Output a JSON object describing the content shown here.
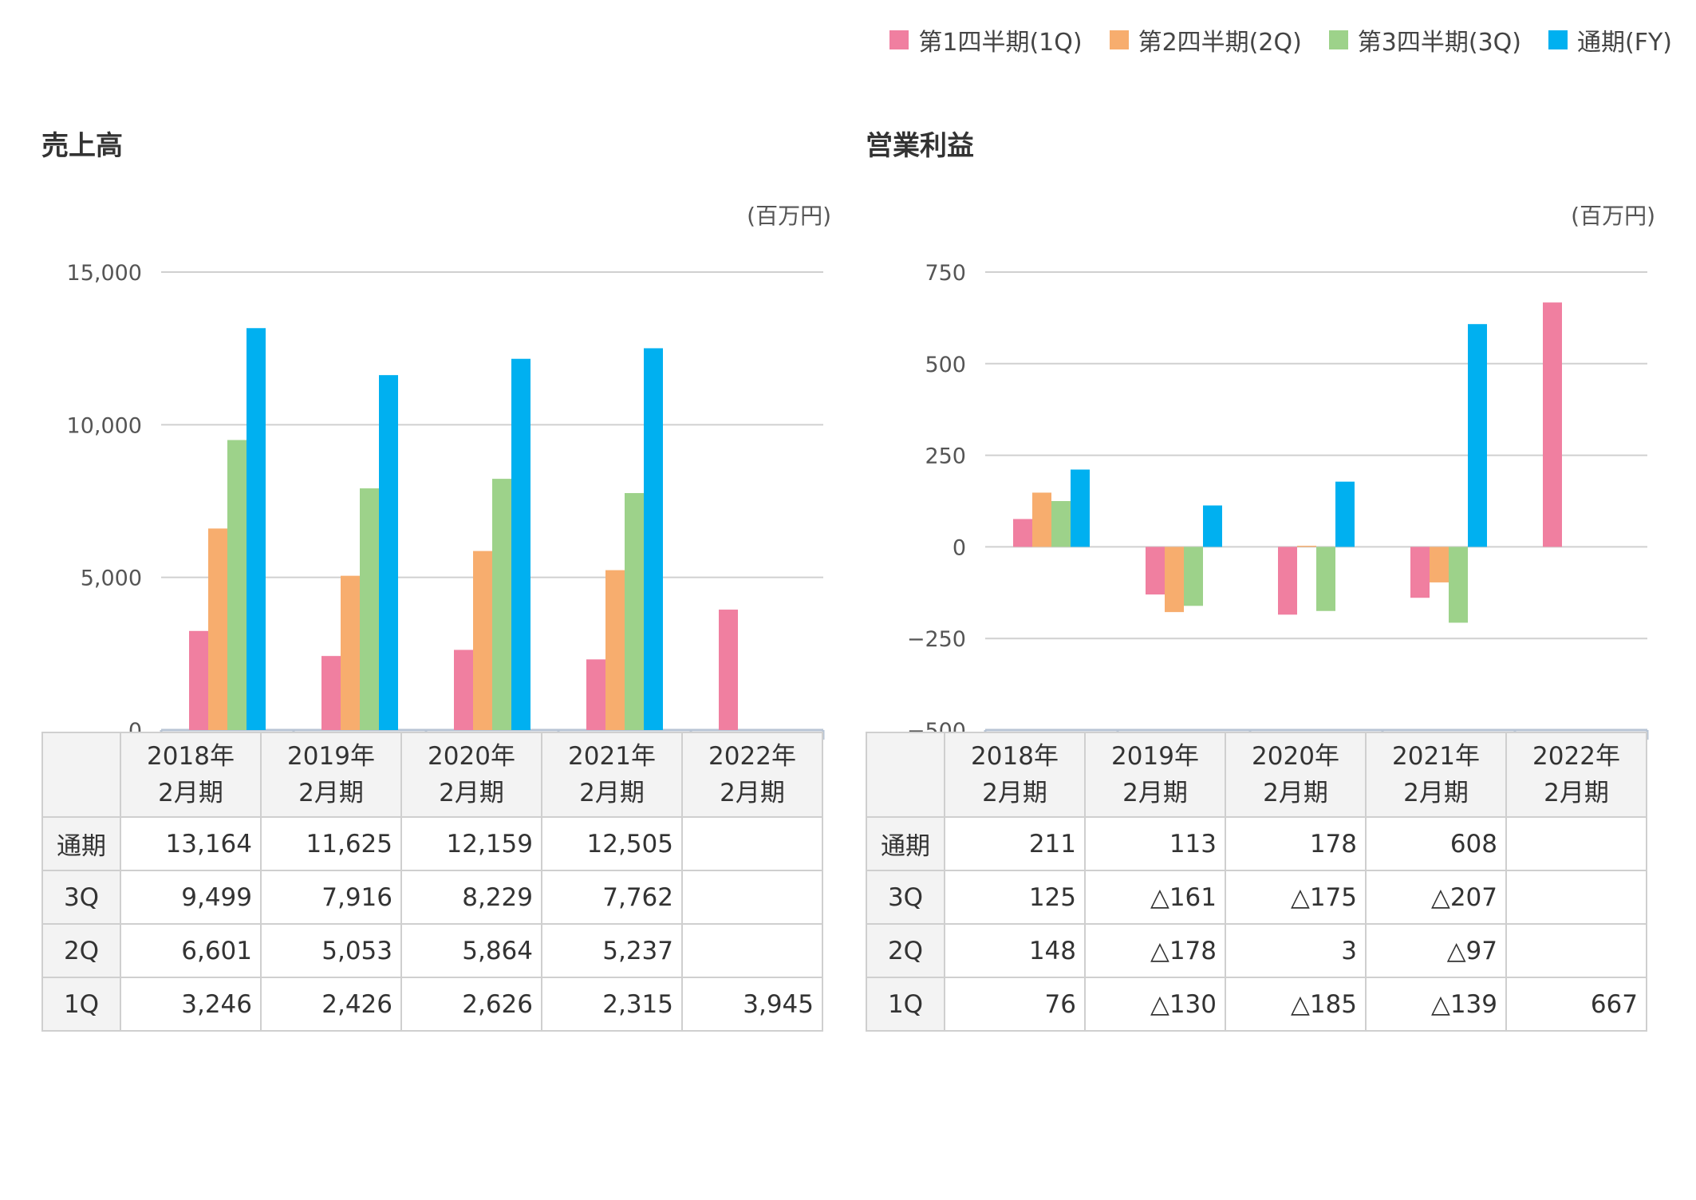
{
  "legend": [
    {
      "label": "第1四半期(1Q)",
      "color": "#f07fa0"
    },
    {
      "label": "第2四半期(2Q)",
      "color": "#f7ad6e"
    },
    {
      "label": "第3四半期(3Q)",
      "color": "#9dd28a"
    },
    {
      "label": "通期(FY)",
      "color": "#00b0f0"
    }
  ],
  "sales": {
    "title": "売上高",
    "unit": "(百万円)",
    "table": {
      "headers": [
        [
          "2018年",
          "2月期"
        ],
        [
          "2019年",
          "2月期"
        ],
        [
          "2020年",
          "2月期"
        ],
        [
          "2021年",
          "2月期"
        ],
        [
          "2022年",
          "2月期"
        ]
      ],
      "rows": [
        {
          "label": "通期",
          "values": [
            "13,164",
            "11,625",
            "12,159",
            "12,505",
            ""
          ]
        },
        {
          "label": "3Q",
          "values": [
            "9,499",
            "7,916",
            "8,229",
            "7,762",
            ""
          ]
        },
        {
          "label": "2Q",
          "values": [
            "6,601",
            "5,053",
            "5,864",
            "5,237",
            ""
          ]
        },
        {
          "label": "1Q",
          "values": [
            "3,246",
            "2,426",
            "2,626",
            "2,315",
            "3,945"
          ]
        }
      ]
    }
  },
  "profit": {
    "title": "営業利益",
    "unit": "(百万円)",
    "table": {
      "headers": [
        [
          "2018年",
          "2月期"
        ],
        [
          "2019年",
          "2月期"
        ],
        [
          "2020年",
          "2月期"
        ],
        [
          "2021年",
          "2月期"
        ],
        [
          "2022年",
          "2月期"
        ]
      ],
      "rows": [
        {
          "label": "通期",
          "values": [
            "211",
            "113",
            "178",
            "608",
            ""
          ]
        },
        {
          "label": "3Q",
          "values": [
            "125",
            "△161",
            "△175",
            "△207",
            ""
          ]
        },
        {
          "label": "2Q",
          "values": [
            "148",
            "△178",
            "3",
            "△97",
            ""
          ]
        },
        {
          "label": "1Q",
          "values": [
            "76",
            "△130",
            "△185",
            "△139",
            "667"
          ]
        }
      ]
    }
  },
  "chart_data": [
    {
      "type": "bar",
      "title": "売上高",
      "unit": "(百万円)",
      "categories": [
        "18/2",
        "19/2",
        "20/2",
        "21/2",
        "22/2"
      ],
      "ylim": [
        0,
        15000
      ],
      "yticks": [
        0,
        5000,
        10000,
        15000
      ],
      "ytick_labels": [
        "0",
        "5,000",
        "10,000",
        "15,000"
      ],
      "grid": true,
      "series": [
        {
          "name": "第1四半期(1Q)",
          "color": "#f07fa0",
          "values": [
            3246,
            2426,
            2626,
            2315,
            3945
          ]
        },
        {
          "name": "第2四半期(2Q)",
          "color": "#f7ad6e",
          "values": [
            6601,
            5053,
            5864,
            5237,
            null
          ]
        },
        {
          "name": "第3四半期(3Q)",
          "color": "#9dd28a",
          "values": [
            9499,
            7916,
            8229,
            7762,
            null
          ]
        },
        {
          "name": "通期(FY)",
          "color": "#00b0f0",
          "values": [
            13164,
            11625,
            12159,
            12505,
            null
          ]
        }
      ]
    },
    {
      "type": "bar",
      "title": "営業利益",
      "unit": "(百万円)",
      "categories": [
        "18/2",
        "19/2",
        "20/2",
        "21/2",
        "22/2"
      ],
      "ylim": [
        -500,
        750
      ],
      "yticks": [
        -500,
        -250,
        0,
        250,
        500,
        750
      ],
      "ytick_labels": [
        "−500",
        "−250",
        "0",
        "250",
        "500",
        "750"
      ],
      "grid": true,
      "series": [
        {
          "name": "第1四半期(1Q)",
          "color": "#f07fa0",
          "values": [
            76,
            -130,
            -185,
            -139,
            667
          ]
        },
        {
          "name": "第2四半期(2Q)",
          "color": "#f7ad6e",
          "values": [
            148,
            -178,
            3,
            -97,
            null
          ]
        },
        {
          "name": "第3四半期(3Q)",
          "color": "#9dd28a",
          "values": [
            125,
            -161,
            -175,
            -207,
            null
          ]
        },
        {
          "name": "通期(FY)",
          "color": "#00b0f0",
          "values": [
            211,
            113,
            178,
            608,
            null
          ]
        }
      ]
    }
  ]
}
